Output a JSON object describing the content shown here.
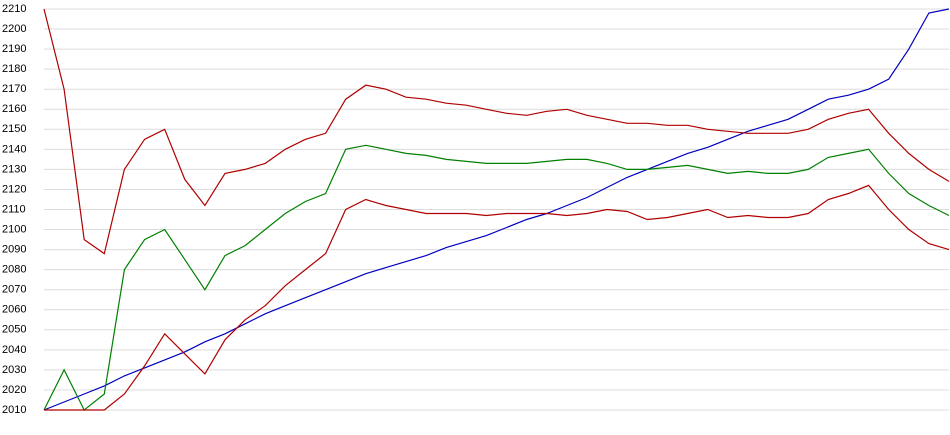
{
  "chart_data": {
    "type": "line",
    "categories": [
      null,
      null,
      null,
      null,
      null,
      null,
      null,
      null,
      null,
      null,
      null,
      null,
      null,
      null,
      null,
      null,
      null,
      null,
      null,
      null,
      null,
      null,
      null,
      null,
      null,
      null,
      null,
      null,
      null,
      null,
      null,
      null,
      null,
      null,
      null,
      null,
      null,
      null,
      null,
      null,
      null,
      null,
      null,
      null,
      null,
      null
    ],
    "series": [
      {
        "color": "#0000c0",
        "values": [
          2010,
          2014,
          2018,
          2022,
          2027,
          2031,
          2035,
          2039,
          2044,
          2048,
          2053,
          2058,
          2062,
          2066,
          2070,
          2074,
          2078,
          2081,
          2084,
          2087,
          2091,
          2094,
          2097,
          2101,
          2105,
          2108,
          2112,
          2116,
          2121,
          2126,
          2130,
          2134,
          2138,
          2141,
          2145,
          2149,
          2152,
          2155,
          2160,
          2165,
          2167,
          2170,
          2175,
          2190,
          2208,
          2210
        ]
      },
      {
        "color": "#b00000",
        "values": [
          2210,
          2170,
          2095,
          2088,
          2130,
          2145,
          2150,
          2125,
          2112,
          2128,
          2130,
          2133,
          2140,
          2145,
          2148,
          2165,
          2172,
          2170,
          2166,
          2165,
          2163,
          2162,
          2160,
          2158,
          2157,
          2159,
          2160,
          2157,
          2155,
          2153,
          2153,
          2152,
          2152,
          2150,
          2149,
          2148,
          2148,
          2148,
          2150,
          2155,
          2158,
          2160,
          2148,
          2138,
          2130,
          2124
        ]
      },
      {
        "color": "#008000",
        "values": [
          2010,
          2030,
          2010,
          2018,
          2080,
          2095,
          2100,
          2085,
          2070,
          2087,
          2092,
          2100,
          2108,
          2114,
          2118,
          2140,
          2142,
          2140,
          2138,
          2137,
          2135,
          2134,
          2133,
          2133,
          2133,
          2134,
          2135,
          2135,
          2133,
          2130,
          2130,
          2131,
          2132,
          2130,
          2128,
          2129,
          2128,
          2128,
          2130,
          2136,
          2138,
          2140,
          2128,
          2118,
          2112,
          2107
        ]
      },
      {
        "color": "#b00000",
        "values": [
          2010,
          2010,
          2010,
          2010,
          2018,
          2032,
          2048,
          2038,
          2028,
          2045,
          2055,
          2062,
          2072,
          2080,
          2088,
          2110,
          2115,
          2112,
          2110,
          2108,
          2108,
          2108,
          2107,
          2108,
          2108,
          2108,
          2107,
          2108,
          2110,
          2109,
          2105,
          2106,
          2108,
          2110,
          2106,
          2107,
          2106,
          2106,
          2108,
          2115,
          2118,
          2122,
          2110,
          2100,
          2093,
          2090
        ]
      }
    ],
    "ylim": [
      2010,
      2210
    ],
    "yticks": [
      2010,
      2020,
      2030,
      2040,
      2050,
      2060,
      2070,
      2080,
      2090,
      2100,
      2110,
      2120,
      2130,
      2140,
      2150,
      2160,
      2170,
      2180,
      2190,
      2200,
      2210
    ],
    "grid": true
  }
}
